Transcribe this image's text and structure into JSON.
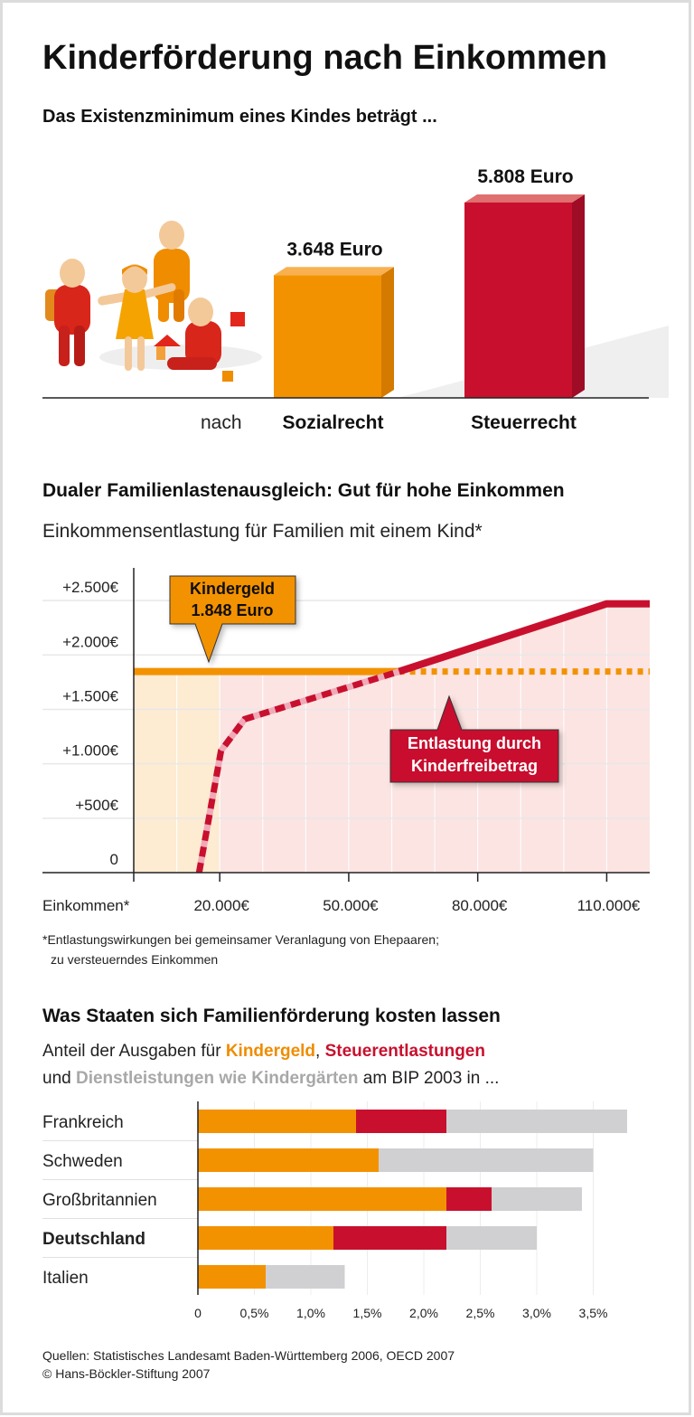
{
  "title": "Kinderförderung nach Einkommen",
  "section1": {
    "heading": "Das Existenzminimum eines Kindes beträgt ..."
  },
  "section2": {
    "heading": "Dualer Familienlastenausgleich: Gut für hohe Einkommen",
    "subheading": "Einkommensentlastung für Familien mit einem Kind*",
    "footnote_line1": "*Entlastungswirkungen bei gemeinsamer Veranlagung von Ehepaaren;",
    "footnote_line2": "zu versteuerndes Einkommen"
  },
  "section3": {
    "heading": "Was Staaten sich Familienförderung kosten lassen",
    "sub_part1": "Anteil der Ausgaben für ",
    "sub_kindergeld": "Kindergeld",
    "sub_comma": ", ",
    "sub_steuer": "Steuerentlastungen",
    "sub_part2": "und ",
    "sub_dienst": "Dienstleistungen wie Kindergärten",
    "sub_part3": " am BIP 2003 in ..."
  },
  "sources": {
    "line1": "Quellen: Statistisches Landesamt Baden-Württemberg 2006, OECD 2007",
    "line2": "© Hans-Böckler-Stiftung 2007"
  },
  "colors": {
    "orange": "#f39200",
    "red": "#c8102e",
    "grey": "#d0d0d2",
    "pink_dash": "#f0a9b8"
  },
  "chart_data": [
    {
      "type": "bar",
      "orientation": "vertical",
      "category_prefix": "nach",
      "categories": [
        "Sozialrecht",
        "Steuerrecht"
      ],
      "values": [
        3648,
        5808
      ],
      "value_labels": [
        "3.648 Euro",
        "5.808 Euro"
      ],
      "colors": [
        "#f39200",
        "#c8102e"
      ],
      "unit": "Euro",
      "style": "3d"
    },
    {
      "type": "line",
      "xlabel": "Einkommen*",
      "xlim": [
        0,
        120000
      ],
      "ylim": [
        0,
        2800
      ],
      "x_ticks": [
        20000,
        50000,
        80000,
        110000
      ],
      "x_tick_labels": [
        "20.000€",
        "50.000€",
        "80.000€",
        "110.000€"
      ],
      "y_ticks": [
        0,
        500,
        1000,
        1500,
        2000,
        2500
      ],
      "y_tick_labels": [
        "0",
        "+500€",
        "+1.000€",
        "+1.500€",
        "+2.000€",
        "+2.500€"
      ],
      "grid": true,
      "series": [
        {
          "key": "kindergeld",
          "color": "#f39200",
          "points": [
            [
              0,
              1848
            ],
            [
              61700,
              1848
            ],
            [
              120000,
              1848
            ]
          ],
          "solid_until": 61700
        },
        {
          "key": "kinderfreibetrag",
          "color": "#c8102e",
          "points": [
            [
              15200,
              0
            ],
            [
              20300,
              1120
            ],
            [
              25800,
              1410
            ],
            [
              61700,
              1848
            ],
            [
              110000,
              2470
            ],
            [
              120000,
              2470
            ]
          ],
          "solid_from": 61700
        }
      ],
      "annotations": [
        {
          "series": "kindergeld",
          "line1": "Kindergeld",
          "line2": "1.848 Euro",
          "color": "#f39200"
        },
        {
          "series": "kinderfreibetrag",
          "line1": "Entlastung durch",
          "line2": "Kinderfreibetrag",
          "color": "#c8102e"
        }
      ]
    },
    {
      "type": "bar",
      "orientation": "horizontal",
      "stacked": true,
      "categories": [
        "Frankreich",
        "Schweden",
        "Großbritannien",
        "Deutschland",
        "Italien"
      ],
      "highlight": "Deutschland",
      "series": [
        {
          "name": "Kindergeld",
          "color": "#f39200",
          "values": [
            1.4,
            1.6,
            2.2,
            1.2,
            0.6
          ]
        },
        {
          "name": "Steuerentlastungen",
          "color": "#c8102e",
          "values": [
            0.8,
            0,
            0.4,
            1.0,
            0
          ]
        },
        {
          "name": "Dienstleistungen wie Kindergärten",
          "color": "#d0d0d2",
          "values": [
            1.6,
            1.9,
            0.8,
            0.8,
            0.7
          ]
        }
      ],
      "xlim": [
        0,
        3.8
      ],
      "x_ticks": [
        0,
        0.5,
        1.0,
        1.5,
        2.0,
        2.5,
        3.0,
        3.5
      ],
      "x_tick_labels": [
        "0",
        "0,5%",
        "1,0%",
        "1,5%",
        "2,0%",
        "2,5%",
        "3,0%",
        "3,5%"
      ],
      "unit": "% des BIP",
      "grid": true
    }
  ]
}
